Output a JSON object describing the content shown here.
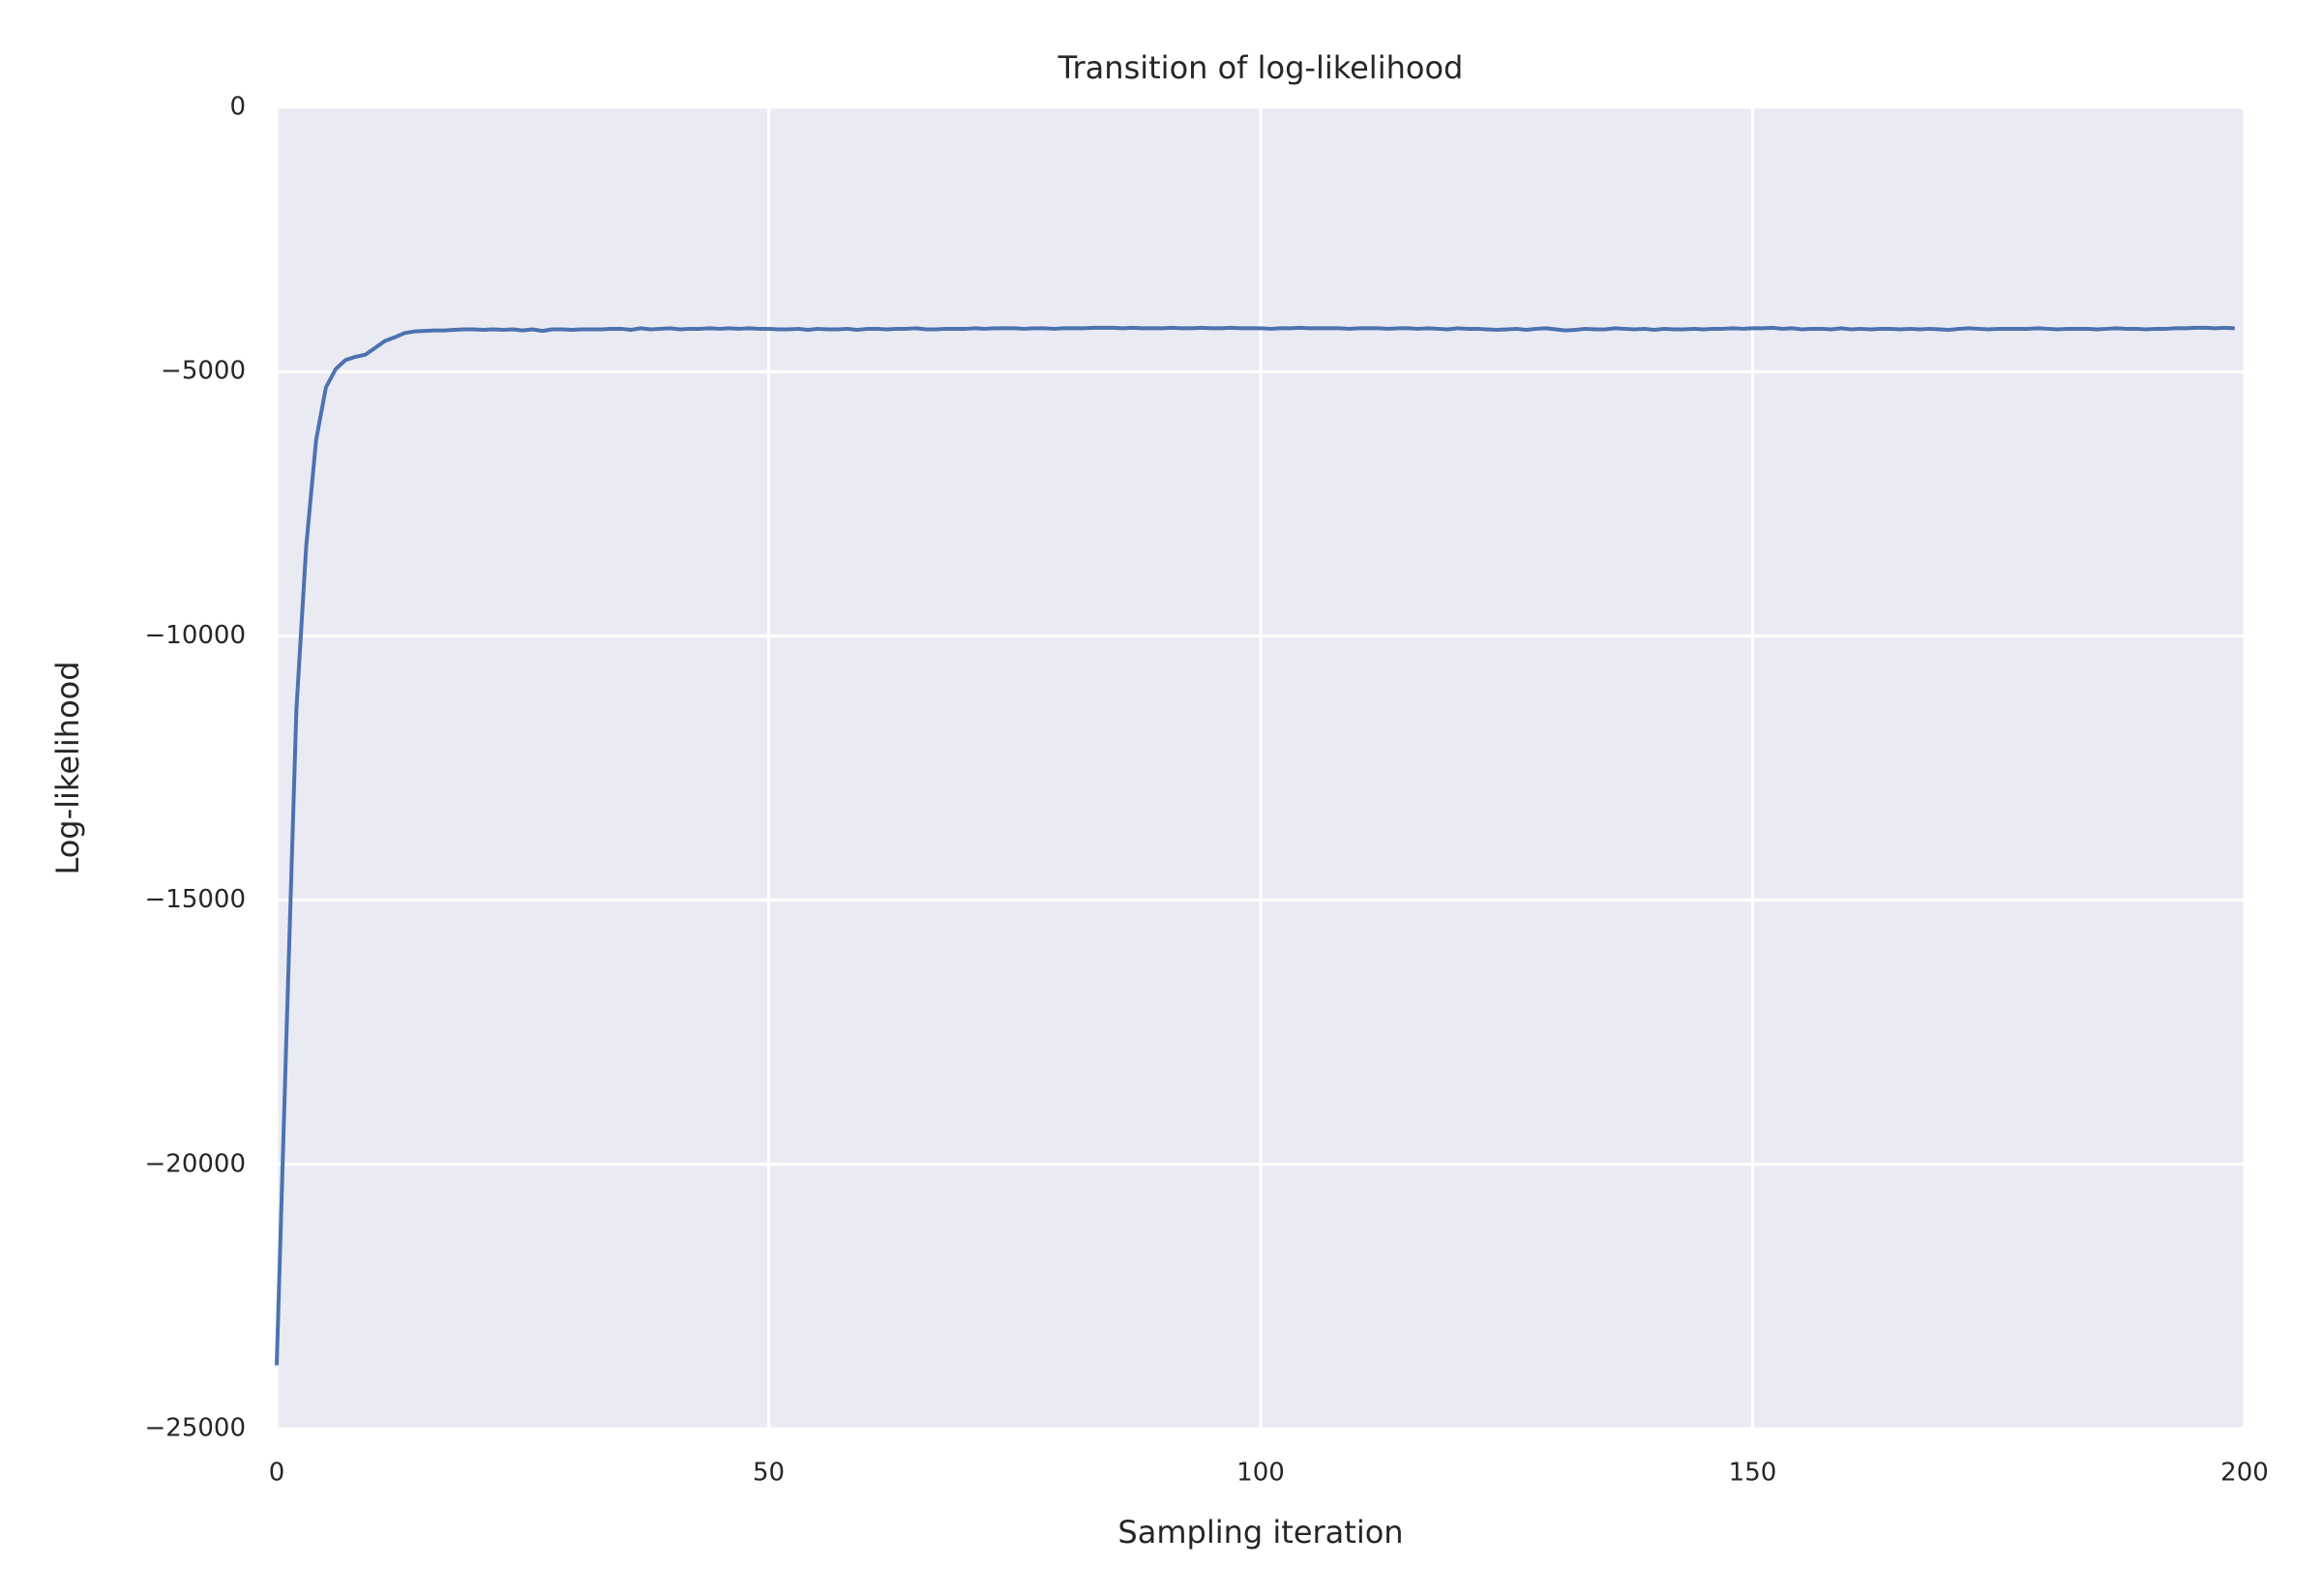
{
  "chart_data": {
    "type": "line",
    "title": "Transition of log-likelihood",
    "x_label": "Sampling iteration",
    "y_label": "Log-likelihood",
    "color": "#4c72b0",
    "grid": true,
    "background": "#eaeaf2",
    "xlim": [
      0,
      200
    ],
    "xticks": [
      0,
      50,
      100,
      150,
      200
    ],
    "ylim": [
      -25000,
      0
    ],
    "yticks": [
      {
        "value": -25000,
        "label": "−25000"
      },
      {
        "value": -20000,
        "label": "−20000"
      },
      {
        "value": -15000,
        "label": "−15000"
      },
      {
        "value": -10000,
        "label": "−10000"
      },
      {
        "value": -5000,
        "label": "−5000"
      },
      0
    ],
    "x": [
      0,
      1,
      2,
      3,
      4,
      5,
      6,
      7,
      8,
      9,
      10,
      11,
      12,
      13,
      14,
      15,
      16,
      17,
      18,
      19,
      20,
      21,
      22,
      23,
      24,
      25,
      26,
      27,
      28,
      29,
      30,
      31,
      32,
      33,
      34,
      35,
      36,
      37,
      38,
      39,
      40,
      41,
      42,
      43,
      44,
      45,
      46,
      47,
      48,
      49,
      50,
      51,
      52,
      53,
      54,
      55,
      56,
      57,
      58,
      59,
      60,
      61,
      62,
      63,
      64,
      65,
      66,
      67,
      68,
      69,
      70,
      71,
      72,
      73,
      74,
      75,
      76,
      77,
      78,
      79,
      80,
      81,
      82,
      83,
      84,
      85,
      86,
      87,
      88,
      89,
      90,
      91,
      92,
      93,
      94,
      95,
      96,
      97,
      98,
      99,
      100,
      101,
      102,
      103,
      104,
      105,
      106,
      107,
      108,
      109,
      110,
      111,
      112,
      113,
      114,
      115,
      116,
      117,
      118,
      119,
      120,
      121,
      122,
      123,
      124,
      125,
      126,
      127,
      128,
      129,
      130,
      131,
      132,
      133,
      134,
      135,
      136,
      137,
      138,
      139,
      140,
      141,
      142,
      143,
      144,
      145,
      146,
      147,
      148,
      149,
      150,
      151,
      152,
      153,
      154,
      155,
      156,
      157,
      158,
      159,
      160,
      161,
      162,
      163,
      164,
      165,
      166,
      167,
      168,
      169,
      170,
      171,
      172,
      173,
      174,
      175,
      176,
      177,
      178,
      179,
      180,
      181,
      182,
      183,
      184,
      185,
      186,
      187,
      188,
      189,
      190,
      191,
      192,
      193,
      194,
      195,
      196,
      197,
      198,
      199
    ],
    "values": [
      -23800,
      -17500,
      -11400,
      -8300,
      -6300,
      -5300,
      -4950,
      -4780,
      -4720,
      -4680,
      -4550,
      -4420,
      -4350,
      -4270,
      -4240,
      -4230,
      -4220,
      -4220,
      -4210,
      -4200,
      -4200,
      -4210,
      -4200,
      -4210,
      -4200,
      -4220,
      -4200,
      -4230,
      -4200,
      -4200,
      -4210,
      -4200,
      -4200,
      -4200,
      -4190,
      -4190,
      -4210,
      -4180,
      -4200,
      -4190,
      -4180,
      -4200,
      -4190,
      -4190,
      -4180,
      -4190,
      -4180,
      -4190,
      -4180,
      -4190,
      -4190,
      -4200,
      -4200,
      -4190,
      -4210,
      -4190,
      -4200,
      -4200,
      -4190,
      -4210,
      -4190,
      -4190,
      -4200,
      -4190,
      -4190,
      -4180,
      -4200,
      -4200,
      -4190,
      -4190,
      -4190,
      -4180,
      -4190,
      -4180,
      -4180,
      -4180,
      -4190,
      -4180,
      -4180,
      -4190,
      -4180,
      -4180,
      -4180,
      -4170,
      -4170,
      -4170,
      -4180,
      -4170,
      -4180,
      -4180,
      -4180,
      -4170,
      -4180,
      -4180,
      -4170,
      -4180,
      -4180,
      -4170,
      -4180,
      -4180,
      -4180,
      -4190,
      -4180,
      -4180,
      -4170,
      -4180,
      -4180,
      -4180,
      -4180,
      -4190,
      -4180,
      -4180,
      -4180,
      -4190,
      -4180,
      -4180,
      -4190,
      -4180,
      -4190,
      -4200,
      -4180,
      -4190,
      -4190,
      -4200,
      -4210,
      -4200,
      -4190,
      -4210,
      -4190,
      -4180,
      -4200,
      -4220,
      -4210,
      -4190,
      -4200,
      -4200,
      -4180,
      -4190,
      -4200,
      -4190,
      -4210,
      -4190,
      -4200,
      -4200,
      -4190,
      -4200,
      -4190,
      -4190,
      -4180,
      -4190,
      -4180,
      -4180,
      -4170,
      -4190,
      -4180,
      -4200,
      -4190,
      -4190,
      -4200,
      -4180,
      -4200,
      -4190,
      -4200,
      -4190,
      -4190,
      -4200,
      -4190,
      -4200,
      -4190,
      -4200,
      -4210,
      -4190,
      -4180,
      -4190,
      -4200,
      -4190,
      -4190,
      -4190,
      -4190,
      -4180,
      -4190,
      -4200,
      -4190,
      -4190,
      -4190,
      -4200,
      -4190,
      -4180,
      -4190,
      -4190,
      -4200,
      -4190,
      -4190,
      -4180,
      -4180,
      -4170,
      -4170,
      -4180,
      -4170,
      -4180
    ]
  }
}
